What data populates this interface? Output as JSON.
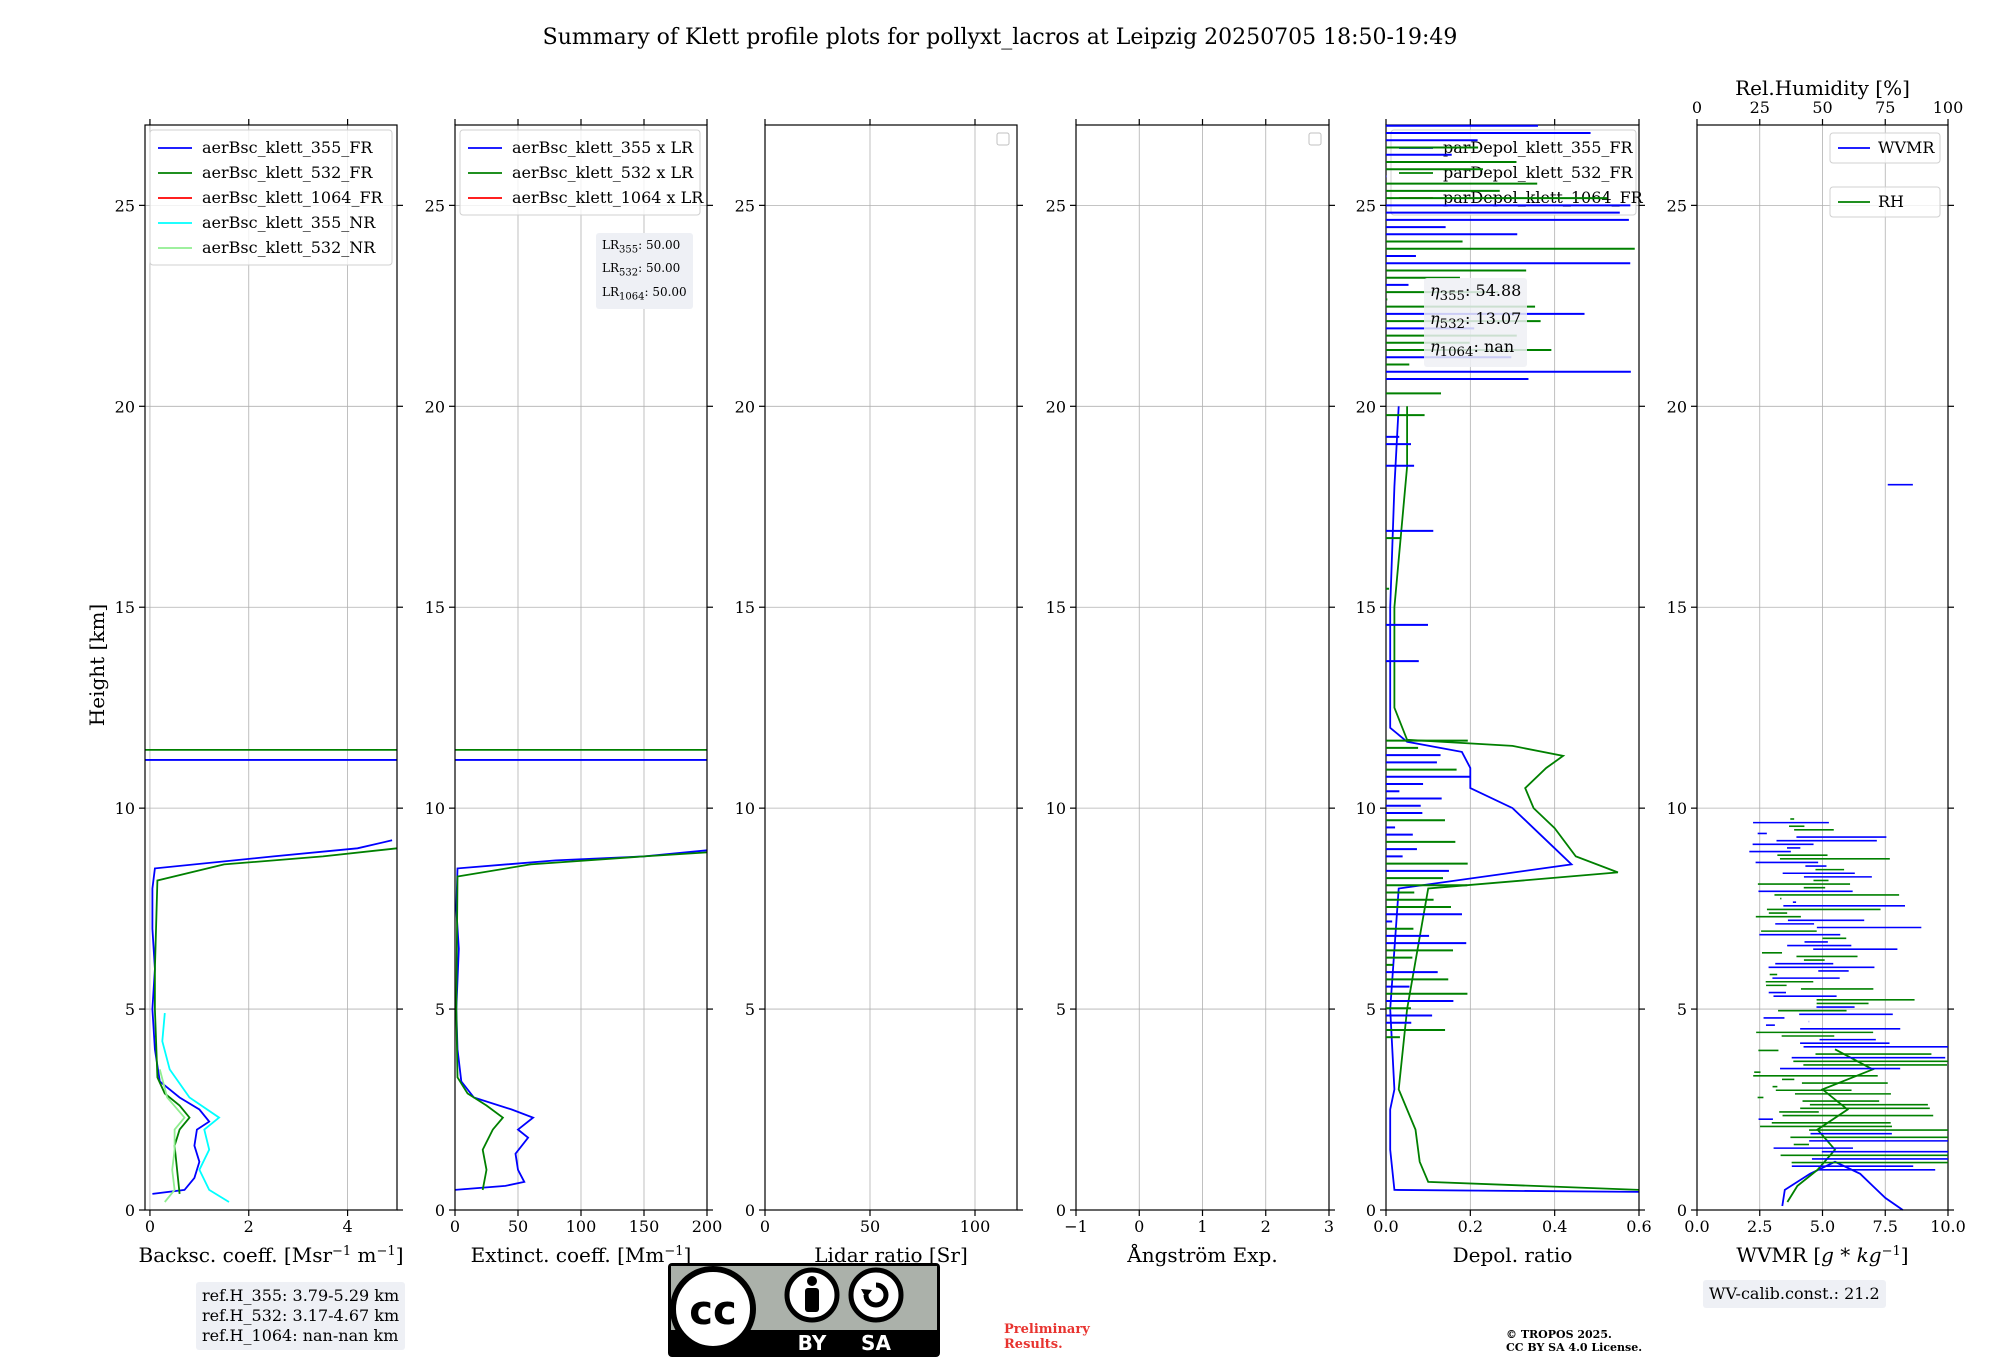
{
  "title": "Summary of Klett profile plots for pollyxt_lacros at Leipzig 20250705 18:50-19:49",
  "ylabel": "Height [km]",
  "ref_box": [
    "ref.H_355: 3.79-5.29 km",
    "ref.H_532: 3.17-4.67 km",
    "ref.H_1064: nan-nan km"
  ],
  "lr_box": {
    "lr355": "LR",
    "lr355_sub": "355",
    "lr355_val": ": 50.00",
    "lr532": "LR",
    "lr532_sub": "532",
    "lr532_val": ": 50.00",
    "lr1064": "LR",
    "lr1064_sub": "1064",
    "lr1064_val": ": 50.00"
  },
  "eta_box": {
    "e355_sub": "355",
    "e355_val": ": 54.88",
    "e532_sub": "532",
    "e532_val": ": 13.07",
    "e1064_sub": "1064",
    "e1064_val": ": nan"
  },
  "wv_calib": "WV-calib.const.: 21.2",
  "preliminary": [
    "Preliminary",
    "Results."
  ],
  "copyright": [
    "© TROPOS 2025.",
    "CC BY SA 4.0 License."
  ],
  "cc_badge": {
    "cc": "cc",
    "by": "BY",
    "sa": "SA"
  },
  "colors": {
    "c355": "#0000ff",
    "c532": "#008000",
    "c1064": "#ff0000",
    "c355nr": "#00ffff",
    "c532nr": "#90ee90"
  },
  "chart_data": [
    {
      "type": "line",
      "xlabel": "Backsc. coeff. [Msr",
      "xlabel_sup": "−1",
      "xlabel_mid": " m",
      "xlabel_sup2": "−1",
      "xlabel_end": "]",
      "xlim": [
        -0.1,
        5
      ],
      "ylim": [
        0,
        27
      ],
      "xticks": [
        0,
        2,
        4
      ],
      "yticks": [
        0,
        5,
        10,
        15,
        20,
        25
      ],
      "legend": [
        "aerBsc_klett_355_FR",
        "aerBsc_klett_532_FR",
        "aerBsc_klett_1064_FR",
        "aerBsc_klett_355_NR",
        "aerBsc_klett_532_NR"
      ],
      "series": [
        {
          "name": "aerBsc_klett_355_FR",
          "color": "#0000ff",
          "points": [
            [
              0.05,
              0.4
            ],
            [
              0.7,
              0.5
            ],
            [
              0.9,
              0.8
            ],
            [
              1.0,
              1.2
            ],
            [
              0.9,
              1.6
            ],
            [
              0.95,
              2.0
            ],
            [
              1.2,
              2.2
            ],
            [
              1.0,
              2.5
            ],
            [
              0.6,
              2.8
            ],
            [
              0.2,
              3.2
            ],
            [
              0.1,
              4
            ],
            [
              0.05,
              5
            ],
            [
              0.1,
              6
            ],
            [
              0.05,
              7
            ],
            [
              0.05,
              8
            ],
            [
              0.1,
              8.5
            ],
            [
              2.5,
              8.8
            ],
            [
              4.2,
              9.0
            ],
            [
              4.9,
              9.2
            ]
          ]
        },
        {
          "name": "aerBsc_klett_532_FR",
          "color": "#008000",
          "points": [
            [
              0.6,
              0.4
            ],
            [
              0.55,
              1.0
            ],
            [
              0.5,
              1.6
            ],
            [
              0.6,
              2.0
            ],
            [
              0.8,
              2.3
            ],
            [
              0.6,
              2.6
            ],
            [
              0.3,
              2.9
            ],
            [
              0.15,
              3.3
            ],
            [
              0.1,
              5
            ],
            [
              0.1,
              6
            ],
            [
              0.15,
              8.2
            ],
            [
              1.5,
              8.6
            ],
            [
              3.5,
              8.8
            ],
            [
              5,
              9.0
            ]
          ]
        },
        {
          "name": "aerBsc_klett_355_NR",
          "color": "#00ffff",
          "points": [
            [
              1.6,
              0.2
            ],
            [
              1.2,
              0.5
            ],
            [
              1.0,
              1.0
            ],
            [
              1.2,
              1.5
            ],
            [
              1.1,
              2.0
            ],
            [
              1.4,
              2.3
            ],
            [
              0.8,
              2.8
            ],
            [
              0.4,
              3.5
            ],
            [
              0.25,
              4.2
            ],
            [
              0.3,
              4.9
            ]
          ]
        },
        {
          "name": "aerBsc_klett_532_NR",
          "color": "#90ee90",
          "points": [
            [
              0.3,
              0.2
            ],
            [
              0.5,
              0.5
            ],
            [
              0.45,
              1.0
            ],
            [
              0.5,
              1.5
            ],
            [
              0.5,
              2.0
            ],
            [
              0.7,
              2.3
            ],
            [
              0.35,
              2.8
            ],
            [
              0.2,
              3.5
            ]
          ]
        }
      ],
      "hlines": [
        {
          "y": 11.45,
          "color": "#008000"
        },
        {
          "y": 11.2,
          "color": "#0000ff"
        }
      ]
    },
    {
      "type": "line",
      "xlabel": "Extinct. coeff. [Mm",
      "xlabel_sup": "−1",
      "xlabel_end": "]",
      "xlim": [
        0,
        200
      ],
      "ylim": [
        0,
        27
      ],
      "xticks": [
        0,
        50,
        100,
        150,
        200
      ],
      "yticks": [
        0,
        5,
        10,
        15,
        20,
        25
      ],
      "legend": [
        "aerBsc_klett_355 x LR",
        "aerBsc_klett_532 x LR",
        "aerBsc_klett_1064 x LR"
      ],
      "series": [
        {
          "name": "aerBsc_klett_355 x LR",
          "color": "#0000ff",
          "points": [
            [
              0,
              0.5
            ],
            [
              40,
              0.6
            ],
            [
              55,
              0.7
            ],
            [
              50,
              1.0
            ],
            [
              48,
              1.4
            ],
            [
              58,
              1.8
            ],
            [
              50,
              2.0
            ],
            [
              62,
              2.3
            ],
            [
              45,
              2.5
            ],
            [
              15,
              2.8
            ],
            [
              5,
              3.2
            ],
            [
              2,
              4
            ],
            [
              1,
              5
            ],
            [
              3,
              6.5
            ],
            [
              1,
              7.5
            ],
            [
              2,
              8.5
            ],
            [
              80,
              8.7
            ],
            [
              150,
              8.8
            ],
            [
              200,
              8.95
            ]
          ]
        },
        {
          "name": "aerBsc_klett_532 x LR",
          "color": "#008000",
          "points": [
            [
              22,
              0.5
            ],
            [
              25,
              1.0
            ],
            [
              22,
              1.5
            ],
            [
              30,
              2.0
            ],
            [
              38,
              2.3
            ],
            [
              25,
              2.6
            ],
            [
              10,
              2.9
            ],
            [
              2,
              3.3
            ],
            [
              1,
              5
            ],
            [
              2,
              8.3
            ],
            [
              60,
              8.6
            ],
            [
              150,
              8.8
            ],
            [
              200,
              8.9
            ]
          ]
        }
      ],
      "hlines": [
        {
          "y": 11.45,
          "color": "#008000"
        },
        {
          "y": 11.2,
          "color": "#0000ff"
        }
      ]
    },
    {
      "type": "line",
      "xlabel": "Lidar ratio [Sr]",
      "xlim": [
        0,
        120
      ],
      "ylim": [
        0,
        27
      ],
      "xticks": [
        0,
        50,
        100
      ],
      "yticks": [
        0,
        5,
        10,
        15,
        20,
        25
      ],
      "series": []
    },
    {
      "type": "line",
      "xlabel": "Ångström Exp.",
      "xlim": [
        -1,
        3
      ],
      "ylim": [
        0,
        27
      ],
      "xticks": [
        -1,
        0,
        1,
        2,
        3
      ],
      "yticks": [
        0,
        5,
        10,
        15,
        20,
        25
      ],
      "series": []
    },
    {
      "type": "line",
      "xlabel": "Depol. ratio",
      "xlim": [
        0,
        0.6
      ],
      "ylim": [
        0,
        27
      ],
      "xticks": [
        0.0,
        0.2,
        0.4,
        0.6
      ],
      "xtick_labels": [
        "0.0",
        "0.2",
        "0.4",
        "0.6"
      ],
      "yticks": [
        0,
        5,
        10,
        15,
        20,
        25
      ],
      "legend": [
        "parDepol_klett_355_FR",
        "parDepol_klett_532_FR",
        "parDepol_klett_1064_FR"
      ],
      "series": [
        {
          "name": "parDepol_klett_355_FR",
          "color": "#0000ff",
          "points": [
            [
              0.6,
              0.45
            ],
            [
              0.02,
              0.5
            ],
            [
              0.01,
              1.5
            ],
            [
              0.01,
              2.5
            ],
            [
              0.02,
              3.0
            ],
            [
              0.01,
              5
            ],
            [
              0.03,
              8
            ],
            [
              0.44,
              8.6
            ],
            [
              0.4,
              9.0
            ],
            [
              0.35,
              9.5
            ],
            [
              0.3,
              10
            ],
            [
              0.2,
              10.5
            ],
            [
              0.2,
              11.0
            ],
            [
              0.18,
              11.4
            ],
            [
              0.05,
              11.65
            ],
            [
              0.01,
              12
            ],
            [
              0.01,
              15
            ],
            [
              0.02,
              18
            ],
            [
              0.03,
              20
            ]
          ]
        },
        {
          "name": "parDepol_klett_532_FR",
          "color": "#008000",
          "points": [
            [
              0.6,
              0.5
            ],
            [
              0.1,
              0.7
            ],
            [
              0.08,
              1.2
            ],
            [
              0.07,
              2.0
            ],
            [
              0.05,
              2.5
            ],
            [
              0.03,
              3.0
            ],
            [
              0.05,
              5
            ],
            [
              0.1,
              8.0
            ],
            [
              0.55,
              8.4
            ],
            [
              0.45,
              8.8
            ],
            [
              0.4,
              9.5
            ],
            [
              0.35,
              10
            ],
            [
              0.33,
              10.5
            ],
            [
              0.38,
              11
            ],
            [
              0.42,
              11.3
            ],
            [
              0.3,
              11.55
            ],
            [
              0.05,
              11.7
            ],
            [
              0.02,
              12.5
            ],
            [
              0.02,
              15
            ],
            [
              0.05,
              18.5
            ],
            [
              0.05,
              20
            ]
          ]
        }
      ]
    },
    {
      "type": "line",
      "xlabel": "WVMR [",
      "xlabel_math": "g * kg",
      "xlabel_sup": "−1",
      "xlabel_end": "]",
      "top_xlabel": "Rel.Humidity [%]",
      "xlim": [
        0,
        10
      ],
      "ylim": [
        0,
        27
      ],
      "xticks": [
        0,
        2.5,
        5,
        7.5,
        10
      ],
      "xtick_labels": [
        "0.0",
        "2.5",
        "5.0",
        "7.5",
        "10.0"
      ],
      "top_xticks": [
        0,
        25,
        50,
        75,
        100
      ],
      "yticks": [
        0,
        5,
        10,
        15,
        20,
        25
      ],
      "legend": [
        "WVMR",
        "RH"
      ],
      "series": [
        {
          "name": "WVMR",
          "color": "#0000ff",
          "points": [
            [
              8.2,
              0.0
            ],
            [
              7.5,
              0.3
            ],
            [
              7.0,
              0.6
            ],
            [
              6.5,
              0.9
            ],
            [
              5.5,
              1.2
            ],
            [
              4.5,
              0.9
            ],
            [
              3.5,
              0.5
            ],
            [
              3.4,
              0.1
            ]
          ]
        },
        {
          "name": "RH",
          "color": "#008000",
          "points": [
            [
              3.6,
              0.2
            ],
            [
              4.0,
              0.6
            ],
            [
              4.8,
              1.0
            ],
            [
              5.5,
              1.5
            ],
            [
              4.8,
              2.0
            ],
            [
              6.0,
              2.5
            ],
            [
              5.0,
              3.0
            ],
            [
              7.0,
              3.5
            ],
            [
              5.5,
              4.0
            ]
          ]
        }
      ]
    }
  ]
}
